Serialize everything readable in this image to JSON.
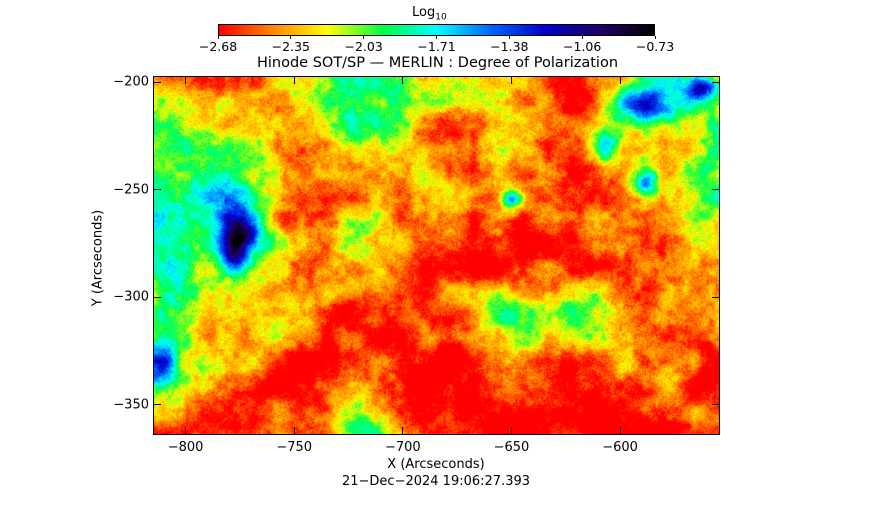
{
  "chart_data": {
    "type": "heatmap",
    "title": "Hinode SOT/SP — MERLIN : Degree of Polarization",
    "xlabel": "X (Arcseconds)",
    "ylabel": "Y (Arcseconds)",
    "xlim": [
      -815,
      -554
    ],
    "ylim": [
      -364,
      -197
    ],
    "x_ticks": [
      "−800",
      "−750",
      "−700",
      "−650",
      "−600"
    ],
    "x_tick_values": [
      -800,
      -750,
      -700,
      -650,
      -600
    ],
    "y_ticks": [
      "−200",
      "−250",
      "−300",
      "−350"
    ],
    "y_tick_values": [
      -200,
      -250,
      -300,
      -350
    ],
    "colorbar": {
      "label_main": "Log",
      "label_sub": "10",
      "ticks": [
        "−2.68",
        "−2.35",
        "−2.03",
        "−1.71",
        "−1.38",
        "−1.06",
        "−0.73"
      ],
      "tick_values": [
        -2.68,
        -2.35,
        -2.03,
        -1.71,
        -1.38,
        -1.06,
        -0.73
      ],
      "colors": [
        "#ff0000",
        "#ff8800",
        "#ffff00",
        "#00ff44",
        "#00ffff",
        "#0066ff",
        "#0000cc",
        "#220066",
        "#000000"
      ]
    },
    "timestamp": "21−Dec−2024 19:06:27.393"
  }
}
